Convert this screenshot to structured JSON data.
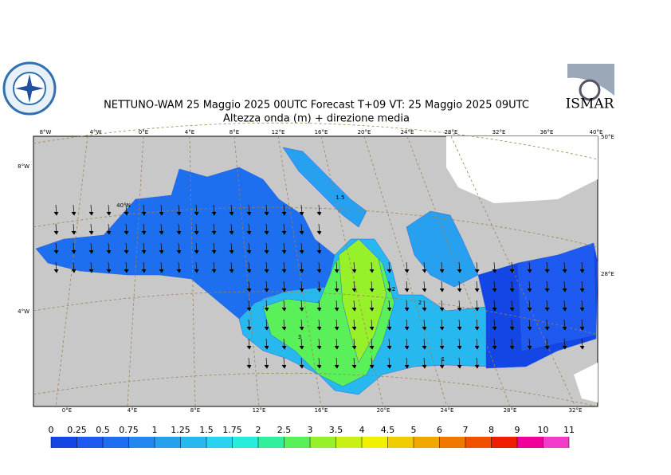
{
  "header": {
    "title": "NETTUNO-WAM  25   Maggio  2025 00UTC Forecast T+09 VT: 25   Maggio  2025 09UTC",
    "subtitle": "Altezza onda (m) + direzione media",
    "logo_text": "ISMAR"
  },
  "map": {
    "top_lon_labels": [
      "8°W",
      "4°W",
      "0°E",
      "4°E",
      "8°E",
      "12°E",
      "16°E",
      "20°E",
      "24°E",
      "28°E",
      "32°E",
      "36°E",
      "40°E"
    ],
    "bottom_lon_labels": [
      "0°E",
      "4°E",
      "8°E",
      "12°E",
      "16°E",
      "20°E",
      "24°E",
      "28°E",
      "32°E"
    ],
    "left_labels": [
      "8°W",
      "4°W"
    ],
    "right_labels": [
      "50°E",
      "28°E"
    ],
    "inner_labels": [
      "40°N"
    ],
    "contour_labels": [
      "1.5",
      "2",
      "2",
      "3",
      "1"
    ]
  },
  "colorbar": {
    "ticks": [
      0,
      0.25,
      0.5,
      0.75,
      1,
      1.25,
      1.5,
      1.75,
      2,
      2.5,
      3,
      3.5,
      4,
      4.5,
      5,
      6,
      7,
      8,
      9,
      10,
      11
    ],
    "colors": [
      "#1446e6",
      "#1e5af0",
      "#1e6ef0",
      "#2288f0",
      "#28a0f0",
      "#28b8f0",
      "#28d2f0",
      "#28ecdc",
      "#30f09c",
      "#5af05a",
      "#96f02a",
      "#c8f014",
      "#f0f000",
      "#f0cc00",
      "#f0a800",
      "#f07800",
      "#f05000",
      "#f01e00",
      "#f0009a",
      "#f03cc8"
    ]
  }
}
